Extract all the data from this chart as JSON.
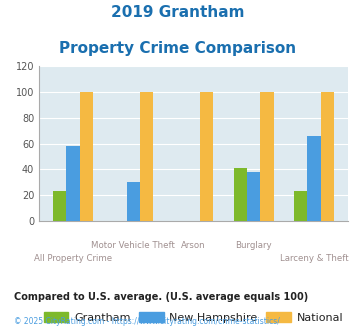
{
  "title_line1": "2019 Grantham",
  "title_line2": "Property Crime Comparison",
  "title_color": "#1a6faf",
  "groups": [
    {
      "label": "All Property Crime",
      "grantham": 23,
      "nh": 58,
      "national": 100
    },
    {
      "label": "Motor Vehicle Theft",
      "grantham": 0,
      "nh": 30,
      "national": 100
    },
    {
      "label": "Arson",
      "grantham": 0,
      "nh": 0,
      "national": 100
    },
    {
      "label": "Burglary",
      "grantham": 41,
      "nh": 38,
      "national": 100
    },
    {
      "label": "Larceny & Theft",
      "grantham": 23,
      "nh": 66,
      "national": 100
    }
  ],
  "color_grantham": "#7db92b",
  "color_nh": "#4a9de0",
  "color_national": "#f5b942",
  "ylim": [
    0,
    120
  ],
  "yticks": [
    0,
    20,
    40,
    60,
    80,
    100,
    120
  ],
  "bg_color": "#deeaf0",
  "legend_labels": [
    "Grantham",
    "New Hampshire",
    "National"
  ],
  "note": "Compared to U.S. average. (U.S. average equals 100)",
  "note_color": "#222222",
  "copyright_color": "#4a9de0",
  "xlabel_color": "#a09090",
  "bar_width": 0.22,
  "top_row_labels": [
    "",
    "Motor Vehicle Theft",
    "Arson",
    "Burglary",
    ""
  ],
  "bottom_row_labels": [
    "All Property Crime",
    "",
    "",
    "",
    "Larceny & Theft"
  ]
}
